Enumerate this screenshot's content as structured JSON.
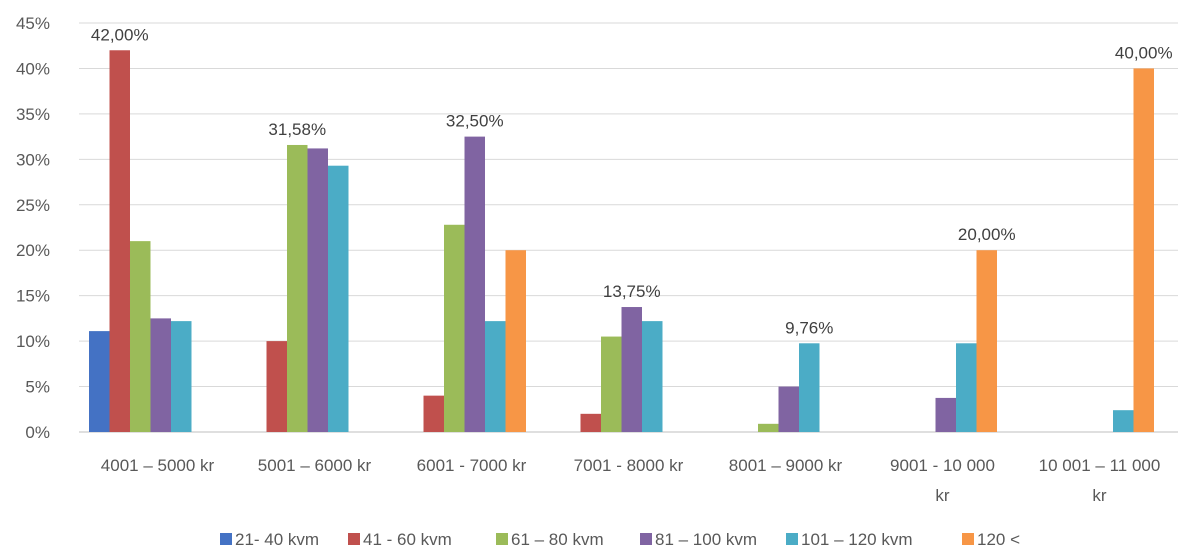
{
  "chart_data": {
    "type": "bar",
    "categories": [
      [
        "4001 – 5000 kr"
      ],
      [
        "5001 – 6000 kr"
      ],
      [
        "6001 - 7000 kr"
      ],
      [
        "7001 - 8000 kr"
      ],
      [
        "8001 – 9000 kr"
      ],
      [
        "9001  - 10 000",
        "kr"
      ],
      [
        "10 001 – 11 000",
        "kr"
      ]
    ],
    "series": [
      {
        "name": "21- 40 kvm",
        "color": "#4472C4",
        "values": [
          11.1,
          0,
          0,
          0,
          0,
          0,
          0
        ]
      },
      {
        "name": "41 - 60 kvm",
        "color": "#C0504D",
        "values": [
          42.0,
          10.0,
          4.0,
          2.0,
          0,
          0,
          0
        ]
      },
      {
        "name": "61 – 80 kvm",
        "color": "#9BBB59",
        "values": [
          21.0,
          31.58,
          22.8,
          10.5,
          0.9,
          0,
          0
        ]
      },
      {
        "name": "81 – 100 kvm",
        "color": "#8064A2",
        "values": [
          12.5,
          31.2,
          32.5,
          13.75,
          5.0,
          3.75,
          0
        ]
      },
      {
        "name": "101 – 120 kvm",
        "color": "#4BACC6",
        "values": [
          12.2,
          29.3,
          12.2,
          12.2,
          9.76,
          9.76,
          2.4
        ]
      },
      {
        "name": "120 <",
        "color": "#F79646",
        "values": [
          0,
          0,
          20.0,
          0,
          0,
          20.0,
          40.0
        ]
      }
    ],
    "data_labels": [
      {
        "category": 0,
        "series": 1,
        "text": "42,00%"
      },
      {
        "category": 1,
        "series": 2,
        "text": "31,58%"
      },
      {
        "category": 2,
        "series": 3,
        "text": "32,50%"
      },
      {
        "category": 3,
        "series": 3,
        "text": "13,75%"
      },
      {
        "category": 4,
        "series": 4,
        "text": "9,76%"
      },
      {
        "category": 5,
        "series": 5,
        "text": "20,00%"
      },
      {
        "category": 6,
        "series": 5,
        "text": "40,00%"
      }
    ],
    "y_ticks": [
      "0%",
      "5%",
      "10%",
      "15%",
      "20%",
      "25%",
      "30%",
      "35%",
      "40%",
      "45%"
    ],
    "ylim": [
      0,
      45
    ],
    "grid": true,
    "legend_position": "bottom",
    "title": "",
    "xlabel": "",
    "ylabel": ""
  }
}
